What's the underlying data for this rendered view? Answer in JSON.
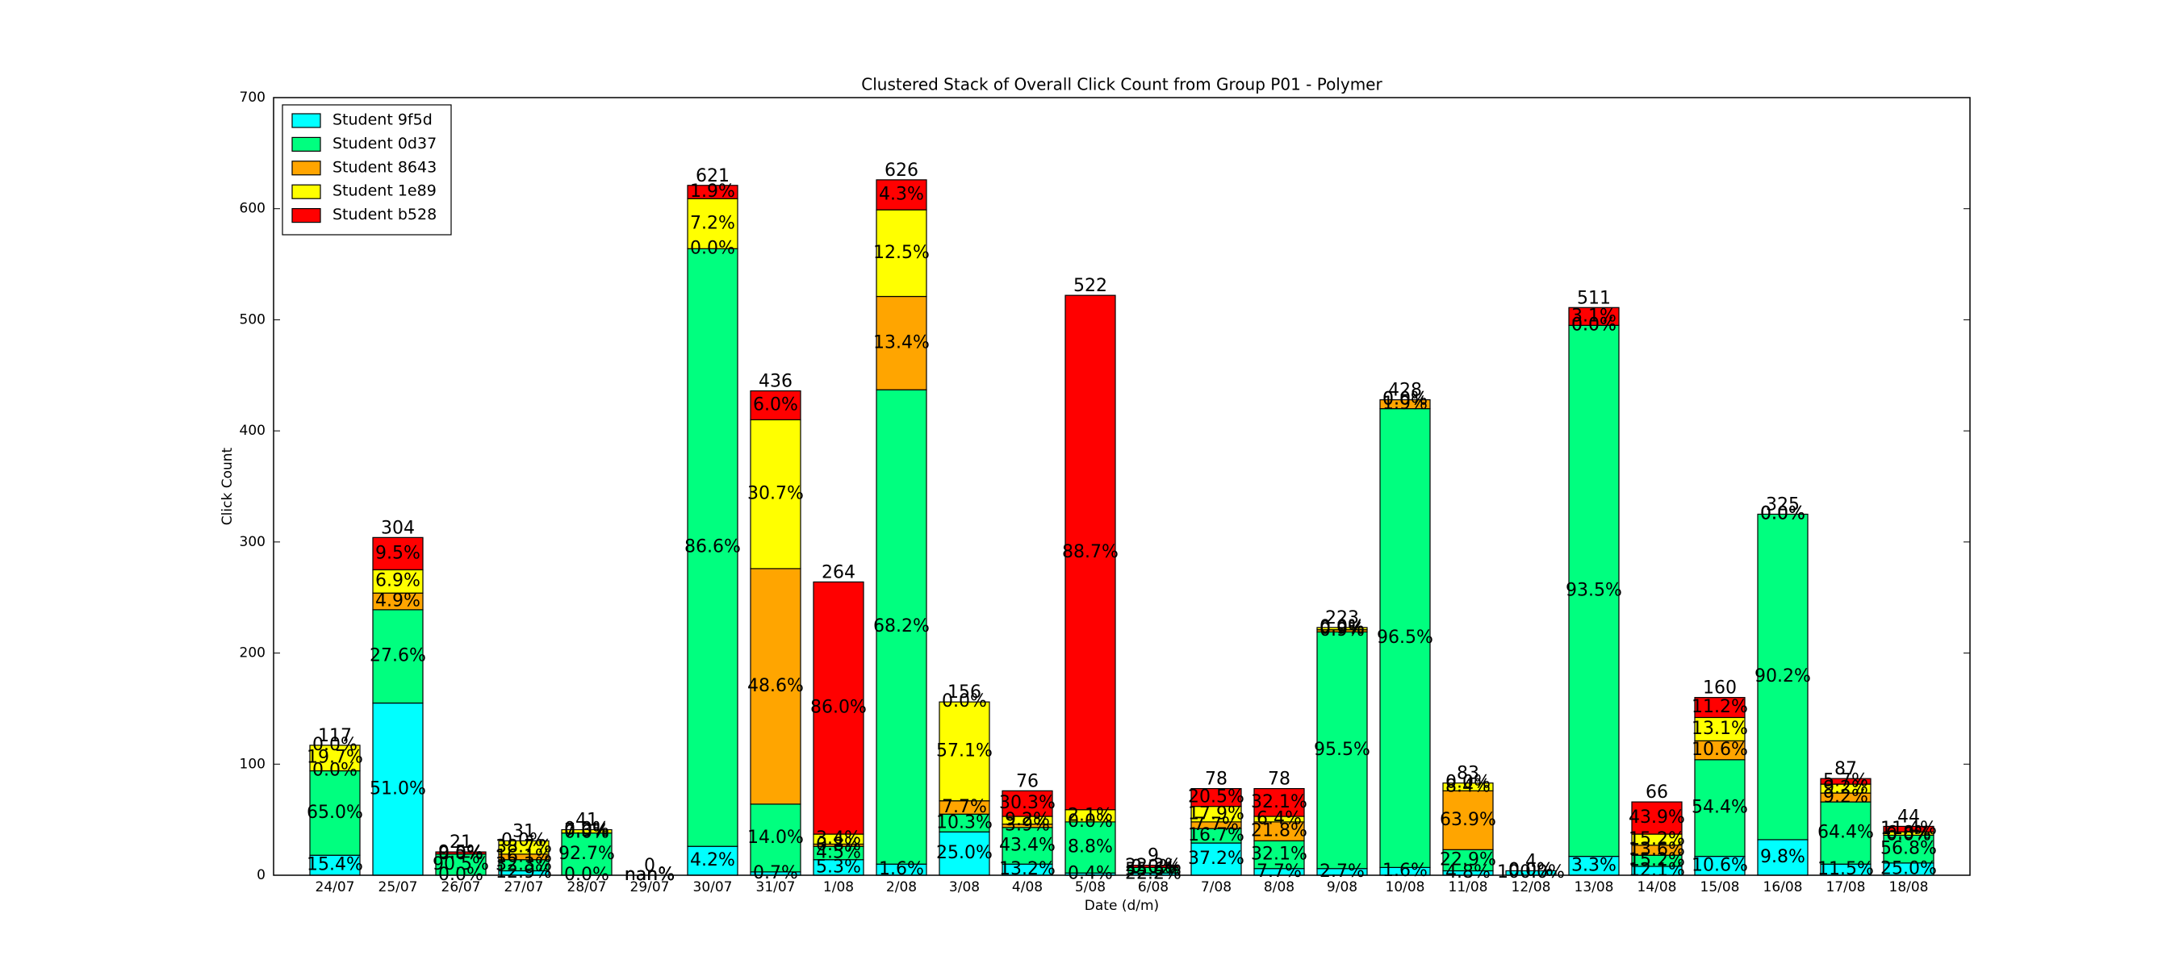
{
  "chart_data": {
    "type": "stacked_bar",
    "title": "Clustered Stack of Overall Click Count from Group P01 - Polymer",
    "x_label": "Date (d/m)",
    "y_label": "Click Count",
    "categories": [
      "24/07",
      "25/07",
      "26/07",
      "27/07",
      "28/07",
      "29/07",
      "30/07",
      "31/07",
      "1/08",
      "2/08",
      "3/08",
      "4/08",
      "5/08",
      "6/08",
      "7/08",
      "8/08",
      "9/08",
      "10/08",
      "11/08",
      "12/08",
      "13/08",
      "14/08",
      "15/08",
      "16/08",
      "17/08",
      "18/08"
    ],
    "totals": [
      117,
      304,
      21,
      31,
      41,
      0,
      621,
      436,
      264,
      626,
      156,
      76,
      522,
      9,
      78,
      78,
      223,
      428,
      83,
      4,
      511,
      66,
      160,
      325,
      87,
      44
    ],
    "series": [
      {
        "name": "Student 9f5d",
        "color": "#00ffff",
        "values": [
          18,
          155,
          0,
          4,
          0,
          0,
          26,
          3,
          14,
          10,
          39,
          10,
          2,
          2,
          29,
          6,
          6,
          7,
          4,
          4,
          17,
          8,
          17,
          32,
          10,
          11
        ],
        "value_labels": [
          "15.4%",
          "51.0%",
          "0.0%",
          "12.9%",
          "0.0%",
          "nan%",
          "4.2%",
          "0.7%",
          "5.3%",
          "1.6%",
          "25.0%",
          "13.2%",
          "0.4%",
          "22.2%",
          "37.2%",
          "7.7%",
          "2.7%",
          "1.6%",
          "4.8%",
          "100.0%",
          "3.3%",
          "12.1%",
          "10.6%",
          "9.8%",
          "11.5%",
          "25.0%"
        ]
      },
      {
        "name": "Student 0d37",
        "color": "#00ff7f",
        "values": [
          76,
          84,
          19,
          10,
          38,
          0,
          538,
          61,
          12,
          427,
          16,
          33,
          46,
          5,
          13,
          25,
          213,
          413,
          19,
          0,
          478,
          10,
          87,
          293,
          56,
          25
        ],
        "value_labels": [
          "65.0%",
          "27.6%",
          "90.5%",
          "32.3%",
          "92.7%",
          "nan%",
          "86.6%",
          "14.0%",
          "4.5%",
          "68.2%",
          "10.3%",
          "43.4%",
          "8.8%",
          "55.6%",
          "16.7%",
          "32.1%",
          "95.5%",
          "96.5%",
          "22.9%",
          "0.0%",
          "93.5%",
          "15.2%",
          "54.4%",
          "90.2%",
          "64.4%",
          "56.8%"
        ]
      },
      {
        "name": "Student 8643",
        "color": "#ffa500",
        "values": [
          0,
          15,
          0,
          5,
          0,
          0,
          0,
          212,
          2,
          84,
          12,
          3,
          0,
          0,
          6,
          17,
          2,
          8,
          53,
          0,
          0,
          9,
          17,
          0,
          8,
          0
        ],
        "value_labels": [
          "0.0%",
          "4.9%",
          "0.0%",
          "16.1%",
          "0.0%",
          "nan%",
          "0.0%",
          "48.6%",
          "0.8%",
          "13.4%",
          "7.7%",
          "3.9%",
          "0.0%",
          "0.0%",
          "7.7%",
          "21.8%",
          "0.9%",
          "1.9%",
          "63.9%",
          "0.0%",
          "0.0%",
          "13.6%",
          "10.6%",
          "0.0%",
          "9.2%",
          "0.0%"
        ]
      },
      {
        "name": "Student 1e89",
        "color": "#ffff00",
        "values": [
          23,
          21,
          0,
          12,
          3,
          0,
          45,
          134,
          9,
          78,
          89,
          7,
          11,
          0,
          14,
          5,
          2,
          0,
          7,
          0,
          0,
          10,
          21,
          0,
          8,
          3
        ],
        "value_labels": [
          "19.7%",
          "6.9%",
          "0.0%",
          "38.7%",
          "7.3%",
          "nan%",
          "7.2%",
          "30.7%",
          "3.4%",
          "12.5%",
          "57.1%",
          "9.2%",
          "2.1%",
          "0.0%",
          "17.9%",
          "6.4%",
          "0.9%",
          "0.0%",
          "8.4%",
          "0.0%",
          "0.0%",
          "15.2%",
          "13.1%",
          "0.0%",
          "9.2%",
          "6.8%"
        ]
      },
      {
        "name": "Student b528",
        "color": "#ff0000",
        "values": [
          0,
          29,
          2,
          0,
          0,
          0,
          12,
          26,
          227,
          27,
          0,
          23,
          463,
          2,
          16,
          25,
          0,
          0,
          0,
          0,
          16,
          29,
          18,
          0,
          5,
          5
        ],
        "value_labels": [
          "0.0%",
          "9.5%",
          "9.5%",
          "0.0%",
          "0.0%",
          "nan%",
          "1.9%",
          "6.0%",
          "86.0%",
          "4.3%",
          "0.0%",
          "30.3%",
          "88.7%",
          "22.2%",
          "20.5%",
          "32.1%",
          "0.0%",
          "0.0%",
          "0.0%",
          "0.0%",
          "3.1%",
          "43.9%",
          "11.2%",
          "0.0%",
          "5.7%",
          "11.4%"
        ]
      }
    ],
    "ylim": [
      0,
      700
    ],
    "yticks": [
      0,
      100,
      200,
      300,
      400,
      500,
      600,
      700
    ],
    "legend": "upper left",
    "grid": false
  }
}
